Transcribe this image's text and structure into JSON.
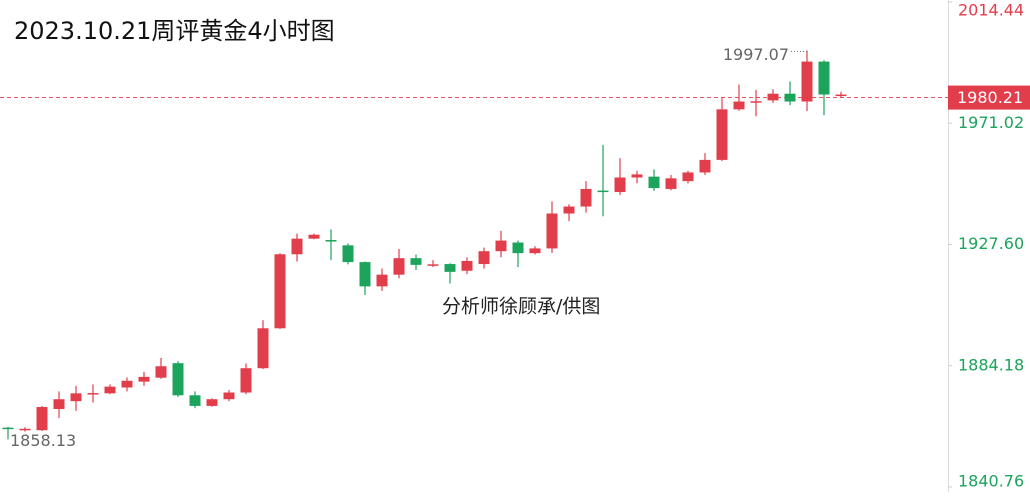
{
  "chart_data": {
    "type": "candlestick",
    "title": "2023.10.21周评黄金4小时图",
    "annotation": "分析师徐顾承/供图",
    "open": [
      1862.0,
      1861.3,
      1861.1,
      1868.7,
      1871.5,
      1874.0,
      1874.3,
      1876.4,
      1878.5,
      1879.9,
      1885.1,
      1873.6,
      1869.8,
      1872.2,
      1874.6,
      1883.3,
      1897.6,
      1924.1,
      1929.7,
      1929.2,
      1927.3,
      1921.3,
      1912.6,
      1916.8,
      1922.7,
      1920.2,
      1920.6,
      1918.2,
      1920.6,
      1925.2,
      1928.3,
      1924.5,
      1926.2,
      1938.7,
      1941.2,
      1946.9,
      1946.4,
      1951.6,
      1951.9,
      1947.5,
      1950.3,
      1953.4,
      1957.9,
      1976.0,
      1978.5,
      1979.2,
      1981.6,
      1978.8,
      1993.1,
      1981.1
    ],
    "high": [
      1862.3,
      1862.2,
      1869.8,
      1875.0,
      1877.0,
      1877.5,
      1877.5,
      1880.0,
      1882.0,
      1887.0,
      1885.8,
      1875.0,
      1872.5,
      1875.5,
      1885.0,
      1900.5,
      1924.5,
      1931.5,
      1931.5,
      1933.0,
      1928.0,
      1921.5,
      1919.0,
      1926.0,
      1924.0,
      1922.0,
      1920.9,
      1923.0,
      1926.5,
      1932.5,
      1929.0,
      1927.0,
      1943.0,
      1942.0,
      1950.3,
      1963.3,
      1958.5,
      1954.0,
      1954.5,
      1952.5,
      1954.0,
      1960.3,
      1980.0,
      1984.9,
      1983.0,
      1983.2,
      1986.0,
      1997.07,
      1993.6,
      1982.3
    ],
    "low": [
      1858.13,
      1860.6,
      1860.8,
      1865.5,
      1868.0,
      1871.0,
      1874.0,
      1875.0,
      1877.0,
      1879.5,
      1873.0,
      1869.0,
      1869.5,
      1871.5,
      1874.0,
      1883.0,
      1897.4,
      1921.5,
      1929.5,
      1922.0,
      1920.5,
      1909.5,
      1911.0,
      1915.5,
      1918.5,
      1919.5,
      1913.6,
      1917.0,
      1919.0,
      1923.0,
      1919.5,
      1924.0,
      1924.6,
      1936.0,
      1939.0,
      1937.7,
      1945.3,
      1949.5,
      1946.8,
      1947.0,
      1949.5,
      1952.5,
      1957.5,
      1975.5,
      1973.5,
      1978.3,
      1977.5,
      1975.4,
      1973.9,
      1980.2
    ],
    "close": [
      1861.7,
      1861.6,
      1869.4,
      1872.2,
      1874.3,
      1874.4,
      1876.7,
      1878.8,
      1880.2,
      1884.0,
      1873.6,
      1869.8,
      1872.2,
      1874.6,
      1883.3,
      1897.6,
      1924.1,
      1929.7,
      1931.1,
      1928.9,
      1921.3,
      1912.6,
      1916.8,
      1922.7,
      1920.3,
      1920.5,
      1917.8,
      1921.7,
      1925.2,
      1929.0,
      1924.5,
      1926.2,
      1938.7,
      1941.2,
      1947.5,
      1946.6,
      1951.6,
      1952.7,
      1947.8,
      1951.3,
      1953.4,
      1957.9,
      1976.0,
      1978.8,
      1978.9,
      1981.6,
      1978.8,
      1993.1,
      1981.3,
      1981.3
    ],
    "up_color": "#e23d4b",
    "down_color": "#1ca35c",
    "last_price": 1980.21,
    "ylim": [
      1840.76,
      2014.44
    ],
    "yticks": [
      1840.76,
      1884.18,
      {
        "value": 1927.6,
        "label": "1927.60"
      },
      1971.02,
      2014.44
    ]
  }
}
